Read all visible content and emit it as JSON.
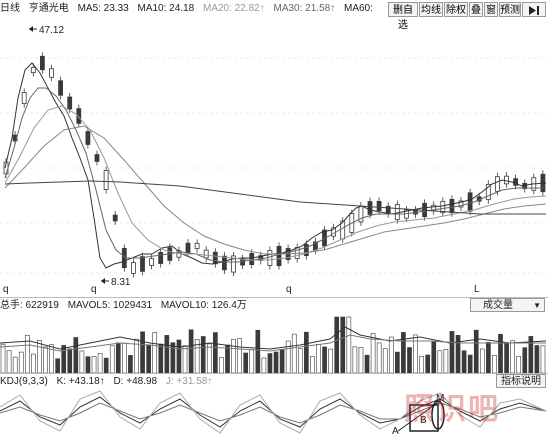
{
  "price_header": {
    "prefix": "日线",
    "stock_name": "亨通光电",
    "ma5": "MA5: 23.33",
    "ma10": "MA10: 24.18",
    "ma20": "MA20: 22.82↑",
    "ma30": "MA30: 21.58↑",
    "ma60": "MA60:"
  },
  "toolbar": {
    "buttons": [
      "删自选",
      "均线",
      "除权",
      "叠",
      "窗",
      "预测"
    ],
    "nav_icon": "play-end-icon"
  },
  "annotations": {
    "high_price": "47.12",
    "low_price": "8.31",
    "marker_q1": "q",
    "marker_q2": "q",
    "marker_q3": "q",
    "marker_l": "L"
  },
  "volume_header": {
    "total": "总手: 622919",
    "mavol5": "MAVOL5: 1029431",
    "mavol10": "MAVOL10: 126.4万",
    "dropdown": "成交量"
  },
  "kdj_header": {
    "name": "KDJ(9,3,3)",
    "k": "K: +43.18↑",
    "d": "D: +48.98",
    "j": "J: +31.58↑",
    "help_button": "指标说明"
  },
  "kdj_labels": {
    "a": "A",
    "b": "B",
    "m": "M"
  },
  "watermark": "照识吧",
  "colors": {
    "candle": "#3a3a3a",
    "line": "#555555",
    "grid": "#d9d9d9"
  }
}
